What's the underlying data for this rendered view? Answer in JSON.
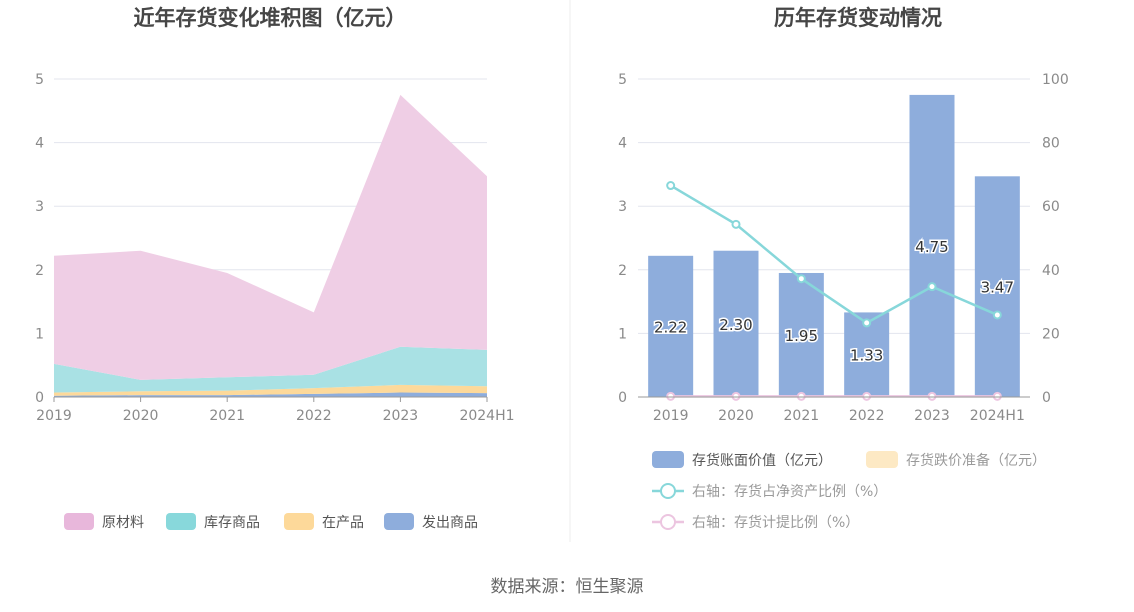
{
  "source_text": "数据来源：恒生聚源",
  "chart_data": [
    {
      "type": "area",
      "stacked": true,
      "title": "近年存货变化堆积图（亿元）",
      "categories": [
        "2019",
        "2020",
        "2021",
        "2022",
        "2023",
        "2024H1"
      ],
      "y_ticks": [
        "0",
        "1",
        "2",
        "3",
        "4",
        "5"
      ],
      "ylim": [
        0,
        5
      ],
      "grid": true,
      "legend_position": "bottom",
      "series": [
        {
          "name": "发出商品",
          "color": "#8eaddc",
          "values": [
            0.02,
            0.03,
            0.03,
            0.05,
            0.07,
            0.06
          ]
        },
        {
          "name": "在产品",
          "color": "#fdd99a",
          "values": [
            0.05,
            0.06,
            0.07,
            0.09,
            0.12,
            0.11
          ]
        },
        {
          "name": "库存商品",
          "color": "#a9e1e4",
          "values": [
            0.45,
            0.18,
            0.21,
            0.21,
            0.6,
            0.57
          ]
        },
        {
          "name": "原材料",
          "color": "#efcee5",
          "values": [
            1.7,
            2.03,
            1.64,
            0.98,
            3.96,
            2.73
          ]
        }
      ],
      "legend_order": [
        "原材料",
        "库存商品",
        "在产品",
        "发出商品"
      ],
      "legend_colors": [
        "#e8b7db",
        "#88d8db",
        "#fdd99a",
        "#8eaddc"
      ]
    },
    {
      "type": "bar",
      "title": "历年存货变动情况",
      "categories": [
        "2019",
        "2020",
        "2021",
        "2022",
        "2023",
        "2024H1"
      ],
      "y_ticks": [
        "0",
        "1",
        "2",
        "3",
        "4",
        "5"
      ],
      "y_right_ticks": [
        "0",
        "20",
        "40",
        "60",
        "80",
        "100"
      ],
      "ylim": [
        0,
        5
      ],
      "ylim_right": [
        0,
        100
      ],
      "grid": true,
      "legend_position": "bottom",
      "series": [
        {
          "name": "存货账面价值（亿元）",
          "color": "#8eaddc",
          "axis": "left",
          "kind": "bar",
          "values": [
            2.22,
            2.3,
            1.95,
            1.33,
            4.75,
            3.47
          ],
          "labels": [
            "2.22",
            "2.30",
            "1.95",
            "1.33",
            "4.75",
            "3.47"
          ]
        },
        {
          "name": "存货跌价准备（亿元）",
          "color": "#fde9c4",
          "axis": "left",
          "kind": "bar",
          "values": [
            0,
            0,
            0,
            0,
            0,
            0
          ]
        },
        {
          "name": "右轴：存货占净资产比例（%）",
          "color": "#87d7da",
          "axis": "right",
          "kind": "line",
          "values": [
            66.5,
            54.3,
            37.2,
            23.3,
            34.7,
            25.8
          ]
        },
        {
          "name": "右轴：存货计提比例（%）",
          "color": "#ecc5e0",
          "axis": "right",
          "kind": "line",
          "values": [
            0.2,
            0.2,
            0.2,
            0.2,
            0.2,
            0.2
          ]
        }
      ]
    }
  ]
}
